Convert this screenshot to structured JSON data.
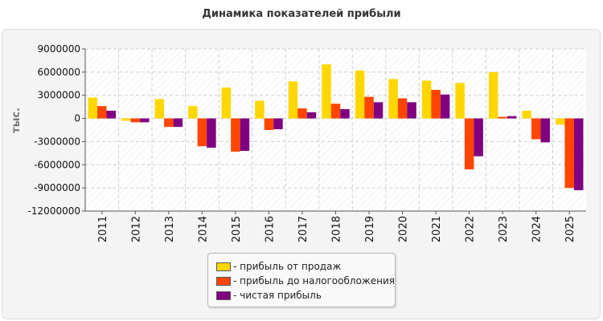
{
  "chart_data": {
    "type": "bar",
    "title": "Динамика показателей прибыли",
    "ylabel": "тыс.",
    "xlabel": "",
    "categories": [
      "2011",
      "2012",
      "2013",
      "2014",
      "2015",
      "2016",
      "2017",
      "2018",
      "2019",
      "2020",
      "2021",
      "2022",
      "2023",
      "2024",
      "2025"
    ],
    "ylim": [
      -12000000,
      9000000
    ],
    "yticks": [
      9000000,
      6000000,
      3000000,
      0,
      -3000000,
      -6000000,
      -9000000,
      -12000000
    ],
    "ytick_labels": [
      "9000000",
      "6000000",
      "3000000",
      "0",
      "-3000000",
      "-6000000",
      "-9000000",
      "-12000000"
    ],
    "grid": true,
    "legend_position": "bottom-center",
    "series": [
      {
        "name": "- прибыль от продаж",
        "color": "#ffd700",
        "values": [
          2700000,
          -300000,
          2500000,
          1600000,
          4000000,
          2300000,
          4800000,
          7000000,
          6200000,
          5100000,
          4900000,
          4600000,
          6000000,
          1000000,
          -800000
        ]
      },
      {
        "name": "- прибыль до налогообложения",
        "color": "#ff4500",
        "values": [
          1600000,
          -500000,
          -1100000,
          -3600000,
          -4300000,
          -1500000,
          1300000,
          1900000,
          2800000,
          2600000,
          3700000,
          -6600000,
          200000,
          -2700000,
          -9000000
        ]
      },
      {
        "name": "- чистая прибыль",
        "color": "#800080",
        "values": [
          1000000,
          -500000,
          -1100000,
          -3800000,
          -4200000,
          -1400000,
          800000,
          1200000,
          2100000,
          2100000,
          3100000,
          -4900000,
          300000,
          -3100000,
          -9300000
        ]
      }
    ]
  }
}
